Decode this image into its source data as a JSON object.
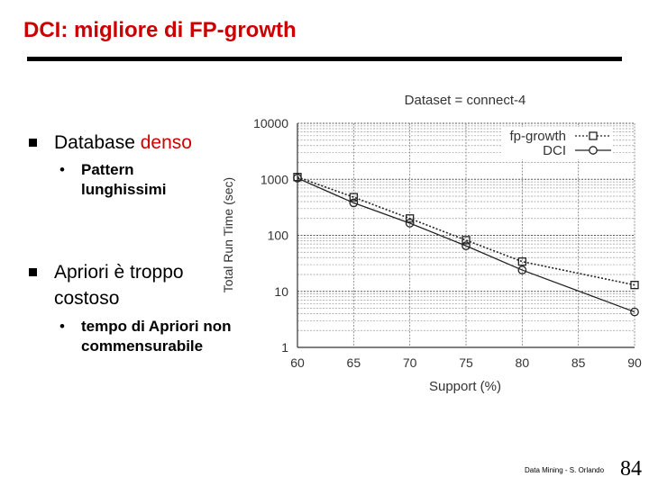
{
  "slide": {
    "title": "DCI: migliore di FP-growth",
    "footer": "Data Mining - S. Orlando",
    "page_number": "84"
  },
  "bullets": {
    "b1": {
      "text": "Database ",
      "highlight": "denso"
    },
    "b1_sub": "Pattern lunghissimi",
    "b2": "Apriori è troppo costoso",
    "b2_sub": "tempo di Apriori non commensurabile"
  },
  "chart_data": {
    "type": "line",
    "title": "Dataset = connect-4",
    "xlabel": "Support (%)",
    "ylabel": "Total Run Time (sec)",
    "yscale": "log",
    "xlim": [
      60,
      90
    ],
    "ylim": [
      1,
      10000
    ],
    "x_ticks": [
      "60",
      "65",
      "70",
      "75",
      "80",
      "85",
      "90"
    ],
    "y_ticks": [
      "1",
      "10",
      "100",
      "1000",
      "10000"
    ],
    "grid": true,
    "legend": "top-right",
    "x": [
      60,
      65,
      70,
      75,
      80,
      90
    ],
    "series": [
      {
        "name": "fp-growth",
        "marker": "square",
        "style": "dotted",
        "values": [
          1100,
          480,
          200,
          82,
          34,
          13
        ]
      },
      {
        "name": "DCI",
        "marker": "circle",
        "style": "solid",
        "values": [
          1050,
          380,
          165,
          65,
          24,
          4.3
        ]
      }
    ]
  }
}
